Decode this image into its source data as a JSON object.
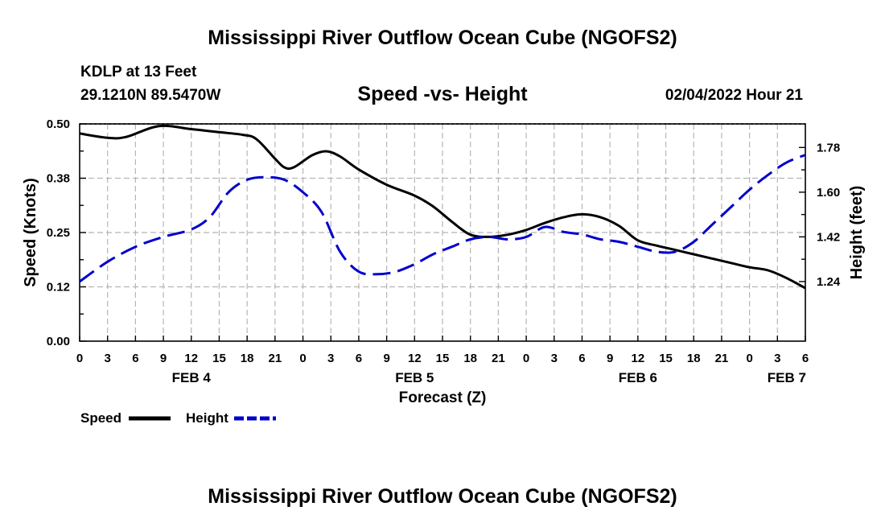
{
  "chart_data": {
    "type": "line",
    "title": "Mississippi River Outflow Ocean Cube (NGOFS2)",
    "subtitle": "Speed -vs- Height",
    "station": "KDLP at 13 Feet",
    "location": "29.1210N  89.5470W",
    "timestamp": "02/04/2022 Hour 21",
    "footer_title": "Mississippi River Outflow Ocean Cube (NGOFS2)",
    "xlabel": "Forecast (Z)",
    "ylabel": "Speed (Knots)",
    "y2label": "Height (feet)",
    "xlim": [
      0,
      78
    ],
    "ylim": [
      0,
      0.5
    ],
    "y2lim": [
      1.0,
      1.875
    ],
    "x_ticks": [
      0,
      3,
      6,
      9,
      12,
      15,
      18,
      21,
      24,
      27,
      30,
      33,
      36,
      39,
      42,
      45,
      48,
      51,
      54,
      57,
      60,
      63,
      66,
      69,
      72,
      75,
      78
    ],
    "x_tick_labels": [
      "0",
      "3",
      "6",
      "9",
      "12",
      "15",
      "18",
      "21",
      "0",
      "3",
      "6",
      "9",
      "12",
      "15",
      "18",
      "21",
      "0",
      "3",
      "6",
      "9",
      "12",
      "15",
      "18",
      "21",
      "0",
      "3",
      "6"
    ],
    "day_labels": [
      {
        "x": 12,
        "label": "FEB 4"
      },
      {
        "x": 36,
        "label": "FEB 5"
      },
      {
        "x": 60,
        "label": "FEB 6"
      },
      {
        "x": 76,
        "label": "FEB 7"
      }
    ],
    "y_ticks": [
      0,
      0.125,
      0.25,
      0.375,
      0.5
    ],
    "y_tick_labels": [
      "0.00",
      "0.12",
      "0.25",
      "0.38",
      "0.50"
    ],
    "y2_ticks": [
      1.24,
      1.42,
      1.6,
      1.78
    ],
    "y2_tick_labels": [
      "1.24",
      "1.42",
      "1.60",
      "1.78"
    ],
    "grid": true,
    "legend_position": "bottom-left",
    "series": [
      {
        "name": "Speed",
        "axis": "left",
        "color": "#000000",
        "dash": "solid",
        "x": [
          0,
          3,
          5,
          8.5,
          12,
          15,
          17.5,
          19,
          21,
          22,
          23,
          25,
          26.5,
          28,
          30,
          33,
          36,
          38,
          40,
          42,
          44,
          46,
          48,
          50,
          52,
          54,
          56,
          58,
          60,
          62,
          64,
          66,
          68,
          70,
          72,
          74,
          76,
          78
        ],
        "y": [
          0.478,
          0.468,
          0.47,
          0.495,
          0.488,
          0.481,
          0.475,
          0.465,
          0.42,
          0.4,
          0.4,
          0.428,
          0.437,
          0.425,
          0.395,
          0.36,
          0.335,
          0.31,
          0.275,
          0.245,
          0.24,
          0.245,
          0.256,
          0.272,
          0.285,
          0.292,
          0.285,
          0.265,
          0.232,
          0.22,
          0.21,
          0.2,
          0.19,
          0.18,
          0.17,
          0.163,
          0.145,
          0.122
        ]
      },
      {
        "name": "Height",
        "axis": "right",
        "color": "#0000cc",
        "dash": "dashed",
        "x": [
          0,
          3,
          6,
          9,
          12,
          14,
          16,
          18,
          20,
          22,
          24,
          26,
          28,
          30,
          32,
          34,
          36,
          38,
          40,
          42,
          44,
          46,
          48,
          50,
          52,
          54,
          56,
          58,
          60,
          62,
          64,
          66,
          68,
          70,
          72,
          74,
          76,
          78
        ],
        "y": [
          1.24,
          1.32,
          1.38,
          1.42,
          1.45,
          1.5,
          1.6,
          1.65,
          1.66,
          1.65,
          1.6,
          1.52,
          1.36,
          1.28,
          1.27,
          1.28,
          1.31,
          1.35,
          1.38,
          1.41,
          1.42,
          1.41,
          1.42,
          1.46,
          1.44,
          1.43,
          1.41,
          1.4,
          1.38,
          1.36,
          1.36,
          1.4,
          1.47,
          1.54,
          1.61,
          1.67,
          1.72,
          1.75
        ]
      }
    ]
  }
}
